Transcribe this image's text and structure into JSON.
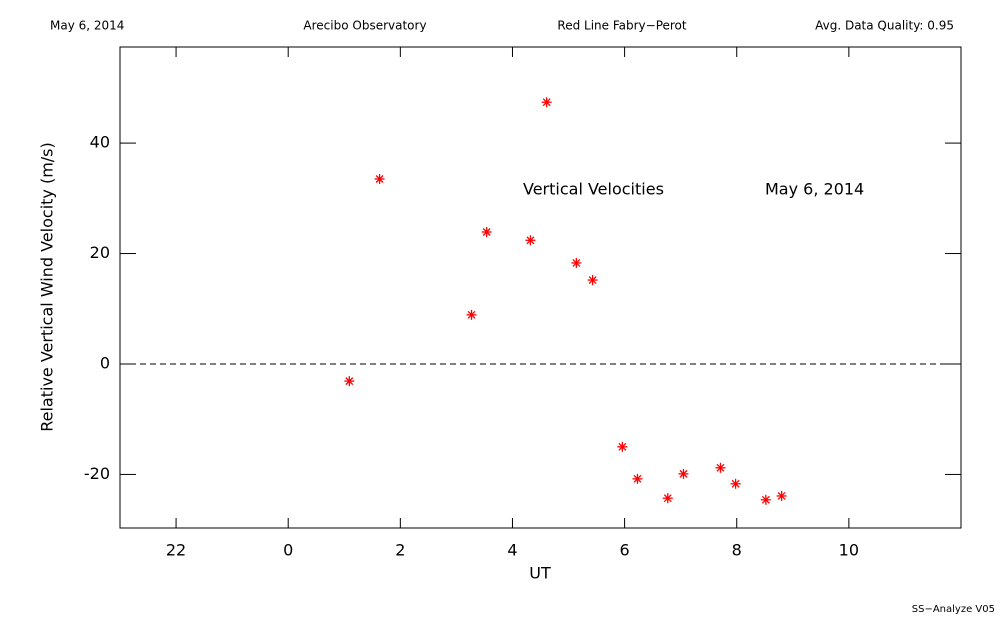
{
  "header": {
    "date": "May 6, 2014",
    "site": "Arecibo Observatory",
    "instrument": "Red Line Fabry−Perot",
    "quality": "Avg. Data Quality: 0.95"
  },
  "footer": "SS−Analyze V05",
  "chart_data": {
    "type": "scatter",
    "annotations": [
      "Vertical Velocities",
      "May 6, 2014"
    ],
    "x_label": "UT",
    "y_label": "Relative Vertical Wind Velocity (m/s)",
    "x": [
      1.09,
      1.63,
      3.27,
      3.54,
      4.32,
      4.61,
      5.14,
      5.43,
      5.96,
      6.23,
      6.77,
      7.05,
      7.71,
      7.98,
      8.52,
      8.8
    ],
    "values": [
      -3.1,
      33.5,
      8.9,
      23.9,
      22.4,
      47.4,
      18.3,
      15.2,
      -15.0,
      -20.8,
      -24.3,
      -19.9,
      -18.8,
      -21.7,
      -24.6,
      -23.9
    ],
    "color": "#ff0000",
    "xlim": [
      -3,
      12
    ],
    "xticks": [
      {
        "value": -2,
        "label": "22"
      },
      0,
      2,
      4,
      6,
      8,
      10
    ],
    "ylim": [
      -29.7,
      57.4
    ],
    "yticks": [
      -20,
      0,
      20,
      40
    ],
    "hline": 0
  }
}
